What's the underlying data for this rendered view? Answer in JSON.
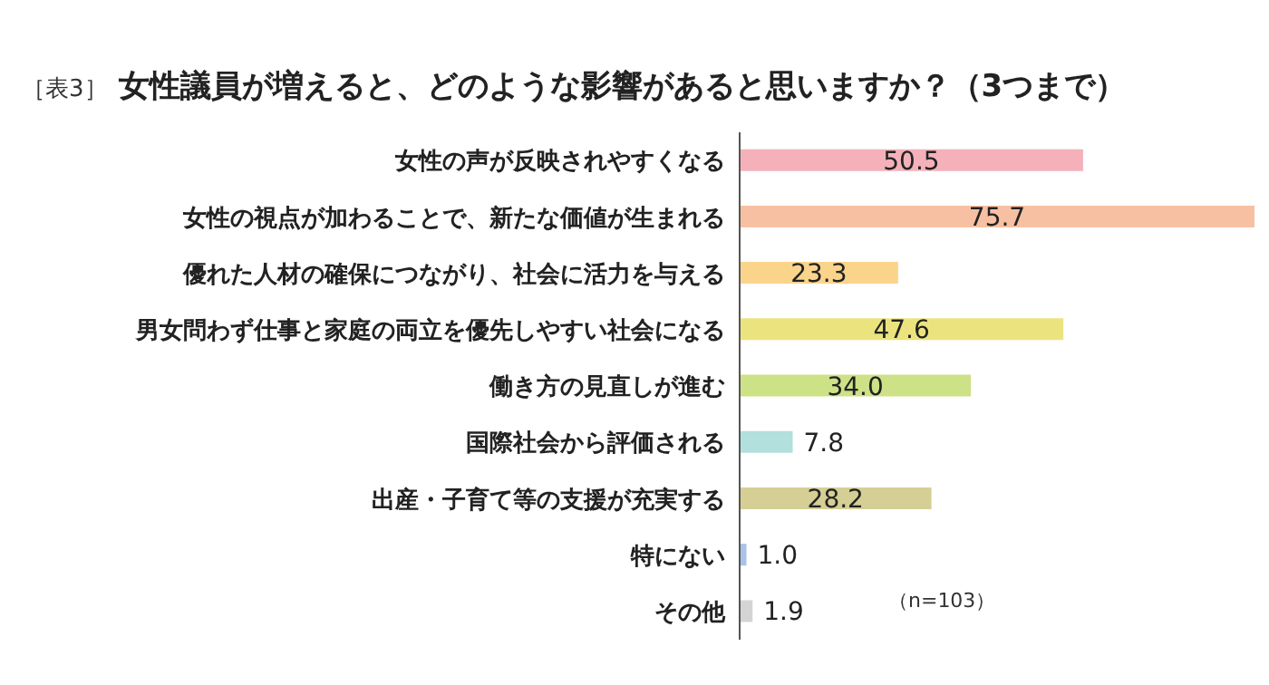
{
  "chart_data": {
    "type": "bar",
    "orientation": "horizontal",
    "title": "女性議員が増えると、どのような影響があると思いますか？（3つまで）",
    "annotations": [
      "［表3］",
      "（n=103）"
    ],
    "categories": [
      "女性の声が反映されやすくなる",
      "女性の視点が加わることで、新たな価値が生まれる",
      "優れた人材の確保につながり、社会に活力を与える",
      "男女問わず仕事と家庭の両立を優先しやすい社会になる",
      "働き方の見直しが進む",
      "国際社会から評価される",
      "出産・子育て等の支援が充実する",
      "特にない",
      "その他"
    ],
    "values": [
      50.5,
      75.7,
      23.3,
      47.6,
      34.0,
      7.8,
      28.2,
      1.0,
      1.9
    ],
    "colors": [
      "#f4b1b9",
      "#f7c0a2",
      "#fbd48c",
      "#ebe47e",
      "#cde186",
      "#b2e0dc",
      "#d5cf95",
      "#a9c2e8",
      "#d4d4d4"
    ],
    "value_labels": [
      "50.5",
      "75.7",
      "23.3",
      "47.6",
      "34.0",
      "7.8",
      "28.2",
      "1.0",
      "1.9"
    ]
  }
}
